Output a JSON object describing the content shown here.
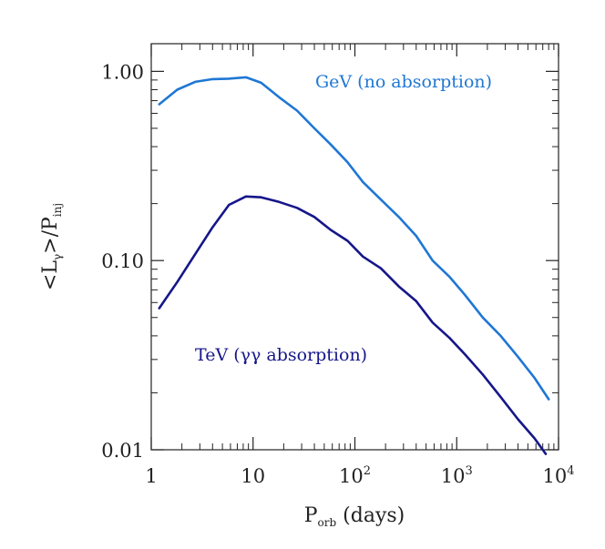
{
  "chart_data": {
    "type": "line",
    "xscale": "log",
    "yscale": "log",
    "xlim": [
      1,
      10000
    ],
    "ylim": [
      0.01,
      1.4
    ],
    "xlabel": {
      "main": "P",
      "sub": "orb",
      "tail": " (days)"
    },
    "ylabel": {
      "left": "<L",
      "sub": "γ",
      "mid": ">/P",
      "sub2": "inj"
    },
    "xticks": [
      {
        "value": 1,
        "label": "1"
      },
      {
        "value": 10,
        "label": "10"
      },
      {
        "value": 100,
        "base": "10",
        "exp": "2"
      },
      {
        "value": 1000,
        "base": "10",
        "exp": "3"
      },
      {
        "value": 10000,
        "base": "10",
        "exp": "4"
      }
    ],
    "yticks": [
      {
        "value": 0.01,
        "label": "0.01"
      },
      {
        "value": 0.1,
        "label": "0.10"
      },
      {
        "value": 1.0,
        "label": "1.00"
      }
    ],
    "grid": false,
    "series": [
      {
        "name": "GeV (no absorption)",
        "color": "#1f77d4",
        "x": [
          1.2,
          1.8,
          2.7,
          4.0,
          5.8,
          8.5,
          12,
          18,
          27,
          40,
          58,
          85,
          120,
          180,
          270,
          400,
          580,
          850,
          1200,
          1800,
          2700,
          4000,
          5800,
          8000
        ],
        "y": [
          0.67,
          0.8,
          0.88,
          0.91,
          0.915,
          0.93,
          0.87,
          0.73,
          0.62,
          0.5,
          0.41,
          0.33,
          0.26,
          0.21,
          0.17,
          0.135,
          0.1,
          0.082,
          0.066,
          0.05,
          0.04,
          0.031,
          0.024,
          0.0185
        ]
      },
      {
        "name": "TeV (γγ absorption)",
        "color": "#16168a",
        "x": [
          1.2,
          1.8,
          2.7,
          4.0,
          5.8,
          8.5,
          12,
          18,
          27,
          40,
          58,
          85,
          120,
          180,
          270,
          400,
          580,
          850,
          1200,
          1800,
          2700,
          4000,
          5800,
          7500
        ],
        "y": [
          0.056,
          0.077,
          0.108,
          0.15,
          0.197,
          0.218,
          0.216,
          0.204,
          0.19,
          0.17,
          0.145,
          0.127,
          0.105,
          0.091,
          0.073,
          0.061,
          0.047,
          0.039,
          0.032,
          0.025,
          0.019,
          0.0145,
          0.0115,
          0.0095
        ]
      }
    ],
    "annotations": [
      {
        "text": "GeV (no absorption)",
        "color": "#1f77d4"
      },
      {
        "text": "TeV (γγ absorption)",
        "color": "#16168a"
      }
    ]
  }
}
